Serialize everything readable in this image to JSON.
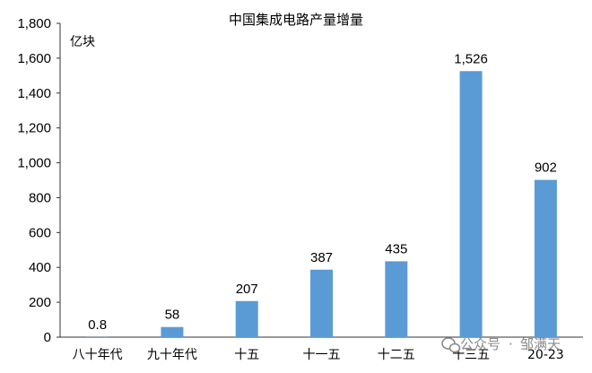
{
  "chart_data": {
    "type": "bar",
    "title": "中国集成电路产量增量",
    "unit_label": "亿块",
    "categories": [
      "八十年代",
      "九十年代",
      "十五",
      "十一五",
      "十二五",
      "十三五",
      "20-23"
    ],
    "values": [
      0.8,
      58,
      207,
      387,
      435,
      1526,
      902
    ],
    "value_labels": [
      "0.8",
      "58",
      "207",
      "387",
      "435",
      "1,526",
      "902"
    ],
    "ylim": [
      0,
      1800
    ],
    "yticks": [
      0,
      200,
      400,
      600,
      800,
      1000,
      1200,
      1400,
      1600,
      1800
    ],
    "ytick_labels": [
      "0",
      "200",
      "400",
      "600",
      "800",
      "1,000",
      "1,200",
      "1,400",
      "1,600",
      "1,800"
    ],
    "grid": false,
    "bar_color": "#5b9bd5"
  },
  "watermark": {
    "prefix": "公众号",
    "separator": "·",
    "author": "邹满天"
  }
}
